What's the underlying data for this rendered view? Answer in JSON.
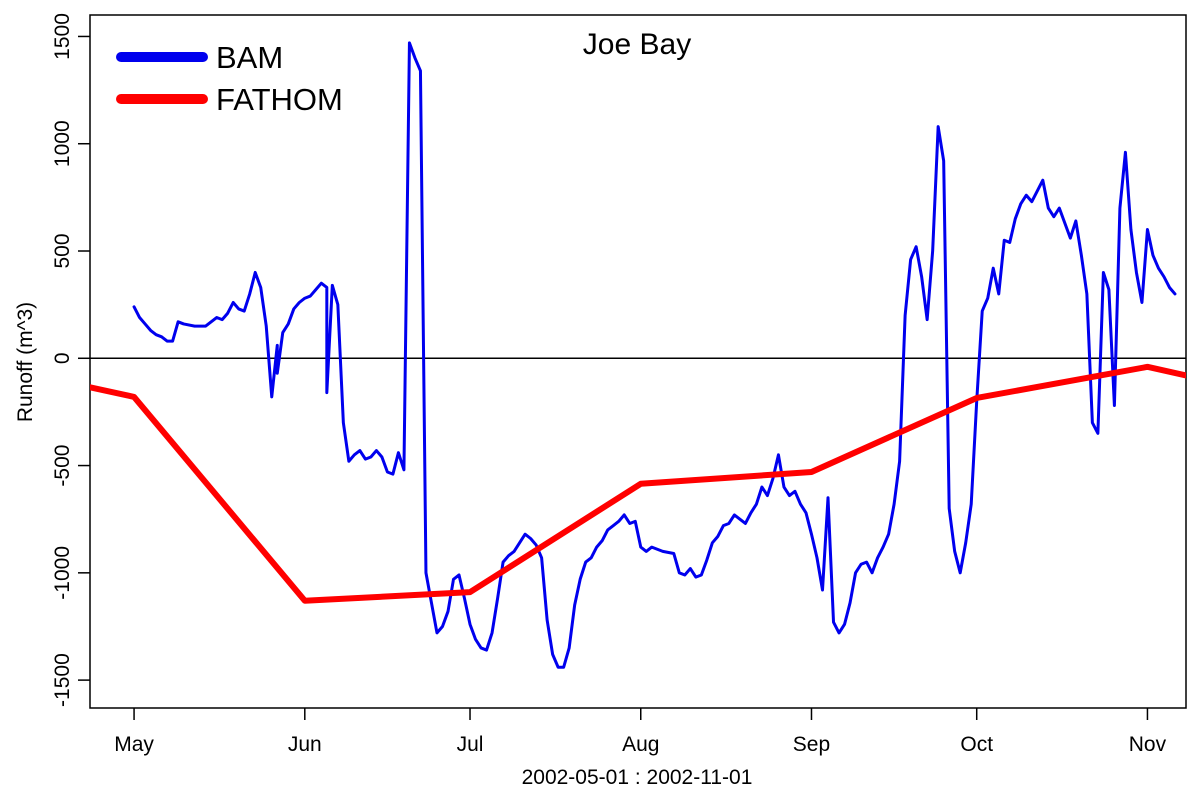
{
  "chart_data": {
    "type": "line",
    "title": "Joe Bay",
    "xlabel": "2002-05-01 : 2002-11-01",
    "ylabel": "Runoff (m^3)",
    "xlim": [
      "2002-04-23",
      "2002-11-08"
    ],
    "ylim": [
      -1630,
      1600
    ],
    "x_ticks": [
      {
        "date": "2002-05-01",
        "label": "May"
      },
      {
        "date": "2002-06-01",
        "label": "Jun"
      },
      {
        "date": "2002-07-01",
        "label": "Jul"
      },
      {
        "date": "2002-08-01",
        "label": "Aug"
      },
      {
        "date": "2002-09-01",
        "label": "Sep"
      },
      {
        "date": "2002-10-01",
        "label": "Oct"
      },
      {
        "date": "2002-11-01",
        "label": "Nov"
      }
    ],
    "y_ticks": [
      -1500,
      -1000,
      -500,
      0,
      500,
      1000,
      1500
    ],
    "y_tick_labels": [
      "-1500",
      "-1000",
      "-500",
      "0",
      "500",
      "1000",
      "1500"
    ],
    "reference_line": 0,
    "grid": false,
    "legend": {
      "position": "top-left"
    },
    "series": [
      {
        "name": "BAM",
        "color": "#0000ee",
        "points": [
          [
            "2002-05-01",
            240
          ],
          [
            "2002-05-02",
            190
          ],
          [
            "2002-05-03",
            160
          ],
          [
            "2002-05-04",
            130
          ],
          [
            "2002-05-05",
            110
          ],
          [
            "2002-05-06",
            100
          ],
          [
            "2002-05-07",
            80
          ],
          [
            "2002-05-08",
            80
          ],
          [
            "2002-05-09",
            170
          ],
          [
            "2002-05-10",
            160
          ],
          [
            "2002-05-12",
            150
          ],
          [
            "2002-05-14",
            150
          ],
          [
            "2002-05-15",
            170
          ],
          [
            "2002-05-16",
            190
          ],
          [
            "2002-05-17",
            180
          ],
          [
            "2002-05-18",
            210
          ],
          [
            "2002-05-19",
            260
          ],
          [
            "2002-05-20",
            230
          ],
          [
            "2002-05-21",
            220
          ],
          [
            "2002-05-22",
            300
          ],
          [
            "2002-05-23",
            400
          ],
          [
            "2002-05-24",
            330
          ],
          [
            "2002-05-25",
            150
          ],
          [
            "2002-05-26",
            -180
          ],
          [
            "2002-05-27",
            60
          ],
          [
            "2002-05-27",
            -70
          ],
          [
            "2002-05-28",
            120
          ],
          [
            "2002-05-29",
            160
          ],
          [
            "2002-05-30",
            230
          ],
          [
            "2002-05-31",
            260
          ],
          [
            "2002-06-01",
            280
          ],
          [
            "2002-06-02",
            290
          ],
          [
            "2002-06-03",
            320
          ],
          [
            "2002-06-04",
            350
          ],
          [
            "2002-06-05",
            330
          ],
          [
            "2002-06-05",
            -160
          ],
          [
            "2002-06-06",
            340
          ],
          [
            "2002-06-07",
            250
          ],
          [
            "2002-06-08",
            -300
          ],
          [
            "2002-06-09",
            -480
          ],
          [
            "2002-06-10",
            -450
          ],
          [
            "2002-06-11",
            -430
          ],
          [
            "2002-06-12",
            -470
          ],
          [
            "2002-06-13",
            -460
          ],
          [
            "2002-06-14",
            -430
          ],
          [
            "2002-06-15",
            -460
          ],
          [
            "2002-06-16",
            -530
          ],
          [
            "2002-06-17",
            -540
          ],
          [
            "2002-06-18",
            -440
          ],
          [
            "2002-06-19",
            -520
          ],
          [
            "2002-06-20",
            1470
          ],
          [
            "2002-06-21",
            1400
          ],
          [
            "2002-06-22",
            1340
          ],
          [
            "2002-06-23",
            -1000
          ],
          [
            "2002-06-24",
            -1140
          ],
          [
            "2002-06-25",
            -1280
          ],
          [
            "2002-06-26",
            -1250
          ],
          [
            "2002-06-27",
            -1180
          ],
          [
            "2002-06-28",
            -1030
          ],
          [
            "2002-06-29",
            -1010
          ],
          [
            "2002-06-30",
            -1120
          ],
          [
            "2002-07-01",
            -1240
          ],
          [
            "2002-07-02",
            -1310
          ],
          [
            "2002-07-03",
            -1350
          ],
          [
            "2002-07-04",
            -1360
          ],
          [
            "2002-07-05",
            -1280
          ],
          [
            "2002-07-06",
            -1120
          ],
          [
            "2002-07-07",
            -950
          ],
          [
            "2002-07-08",
            -920
          ],
          [
            "2002-07-09",
            -900
          ],
          [
            "2002-07-10",
            -860
          ],
          [
            "2002-07-11",
            -820
          ],
          [
            "2002-07-12",
            -840
          ],
          [
            "2002-07-13",
            -870
          ],
          [
            "2002-07-14",
            -930
          ],
          [
            "2002-07-15",
            -1220
          ],
          [
            "2002-07-16",
            -1380
          ],
          [
            "2002-07-17",
            -1440
          ],
          [
            "2002-07-18",
            -1440
          ],
          [
            "2002-07-19",
            -1350
          ],
          [
            "2002-07-20",
            -1150
          ],
          [
            "2002-07-21",
            -1030
          ],
          [
            "2002-07-22",
            -950
          ],
          [
            "2002-07-23",
            -930
          ],
          [
            "2002-07-24",
            -880
          ],
          [
            "2002-07-25",
            -850
          ],
          [
            "2002-07-26",
            -800
          ],
          [
            "2002-07-27",
            -780
          ],
          [
            "2002-07-28",
            -760
          ],
          [
            "2002-07-29",
            -730
          ],
          [
            "2002-07-30",
            -770
          ],
          [
            "2002-07-31",
            -760
          ],
          [
            "2002-08-01",
            -880
          ],
          [
            "2002-08-02",
            -900
          ],
          [
            "2002-08-03",
            -880
          ],
          [
            "2002-08-05",
            -900
          ],
          [
            "2002-08-07",
            -910
          ],
          [
            "2002-08-08",
            -1000
          ],
          [
            "2002-08-09",
            -1010
          ],
          [
            "2002-08-10",
            -980
          ],
          [
            "2002-08-11",
            -1020
          ],
          [
            "2002-08-12",
            -1010
          ],
          [
            "2002-08-13",
            -940
          ],
          [
            "2002-08-14",
            -860
          ],
          [
            "2002-08-15",
            -830
          ],
          [
            "2002-08-16",
            -780
          ],
          [
            "2002-08-17",
            -770
          ],
          [
            "2002-08-18",
            -730
          ],
          [
            "2002-08-19",
            -750
          ],
          [
            "2002-08-20",
            -770
          ],
          [
            "2002-08-21",
            -720
          ],
          [
            "2002-08-22",
            -680
          ],
          [
            "2002-08-23",
            -600
          ],
          [
            "2002-08-24",
            -640
          ],
          [
            "2002-08-25",
            -560
          ],
          [
            "2002-08-26",
            -450
          ],
          [
            "2002-08-27",
            -600
          ],
          [
            "2002-08-28",
            -640
          ],
          [
            "2002-08-29",
            -620
          ],
          [
            "2002-08-30",
            -680
          ],
          [
            "2002-08-31",
            -720
          ],
          [
            "2002-09-01",
            -820
          ],
          [
            "2002-09-02",
            -930
          ],
          [
            "2002-09-03",
            -1080
          ],
          [
            "2002-09-04",
            -650
          ],
          [
            "2002-09-05",
            -1230
          ],
          [
            "2002-09-06",
            -1280
          ],
          [
            "2002-09-07",
            -1240
          ],
          [
            "2002-09-08",
            -1140
          ],
          [
            "2002-09-09",
            -1000
          ],
          [
            "2002-09-10",
            -960
          ],
          [
            "2002-09-11",
            -950
          ],
          [
            "2002-09-12",
            -1000
          ],
          [
            "2002-09-13",
            -930
          ],
          [
            "2002-09-14",
            -880
          ],
          [
            "2002-09-15",
            -820
          ],
          [
            "2002-09-16",
            -680
          ],
          [
            "2002-09-17",
            -480
          ],
          [
            "2002-09-18",
            200
          ],
          [
            "2002-09-19",
            460
          ],
          [
            "2002-09-20",
            520
          ],
          [
            "2002-09-21",
            380
          ],
          [
            "2002-09-22",
            180
          ],
          [
            "2002-09-23",
            500
          ],
          [
            "2002-09-24",
            1080
          ],
          [
            "2002-09-25",
            920
          ],
          [
            "2002-09-26",
            -700
          ],
          [
            "2002-09-27",
            -900
          ],
          [
            "2002-09-28",
            -1000
          ],
          [
            "2002-09-29",
            -860
          ],
          [
            "2002-09-30",
            -680
          ],
          [
            "2002-10-01",
            -200
          ],
          [
            "2002-10-02",
            220
          ],
          [
            "2002-10-03",
            280
          ],
          [
            "2002-10-04",
            420
          ],
          [
            "2002-10-05",
            300
          ],
          [
            "2002-10-06",
            550
          ],
          [
            "2002-10-07",
            540
          ],
          [
            "2002-10-08",
            650
          ],
          [
            "2002-10-09",
            720
          ],
          [
            "2002-10-10",
            760
          ],
          [
            "2002-10-11",
            730
          ],
          [
            "2002-10-12",
            780
          ],
          [
            "2002-10-13",
            830
          ],
          [
            "2002-10-14",
            700
          ],
          [
            "2002-10-15",
            660
          ],
          [
            "2002-10-16",
            700
          ],
          [
            "2002-10-17",
            630
          ],
          [
            "2002-10-18",
            560
          ],
          [
            "2002-10-19",
            640
          ],
          [
            "2002-10-20",
            480
          ],
          [
            "2002-10-21",
            300
          ],
          [
            "2002-10-22",
            -300
          ],
          [
            "2002-10-23",
            -350
          ],
          [
            "2002-10-24",
            400
          ],
          [
            "2002-10-25",
            320
          ],
          [
            "2002-10-26",
            -220
          ],
          [
            "2002-10-27",
            700
          ],
          [
            "2002-10-28",
            960
          ],
          [
            "2002-10-29",
            600
          ],
          [
            "2002-10-30",
            400
          ],
          [
            "2002-10-31",
            260
          ],
          [
            "2002-11-01",
            600
          ],
          [
            "2002-11-02",
            480
          ],
          [
            "2002-11-03",
            420
          ],
          [
            "2002-11-04",
            380
          ],
          [
            "2002-11-05",
            330
          ],
          [
            "2002-11-06",
            300
          ]
        ]
      },
      {
        "name": "FATHOM",
        "color": "#ff0000",
        "points": [
          [
            "2002-04-23",
            -135
          ],
          [
            "2002-05-01",
            -180
          ],
          [
            "2002-06-01",
            -1130
          ],
          [
            "2002-07-01",
            -1090
          ],
          [
            "2002-08-01",
            -585
          ],
          [
            "2002-09-01",
            -530
          ],
          [
            "2002-10-01",
            -185
          ],
          [
            "2002-11-01",
            -40
          ],
          [
            "2002-11-08",
            -80
          ]
        ]
      }
    ]
  }
}
